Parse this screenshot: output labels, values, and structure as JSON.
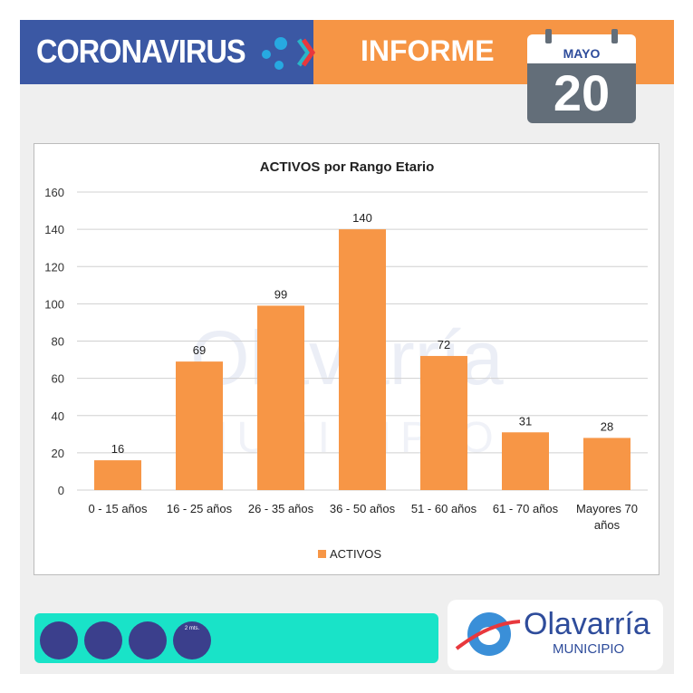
{
  "header": {
    "left_title": "CORONAVIRUS",
    "right_title": "INFORME",
    "calendar": {
      "month": "MAYO",
      "day": "20"
    }
  },
  "footer": {
    "logo_name": "Olavarría",
    "logo_subtitle": "MUNICIPIO",
    "icons": [
      "face-mask-icon",
      "hand-washing-icon",
      "sanitizer-spray-icon",
      "social-distance-icon"
    ],
    "distance_label": "2 mts."
  },
  "colors": {
    "bar": "#f79646",
    "header_blue": "#3b58a4",
    "header_orange": "#f69545",
    "footer_teal": "#19e3c8"
  },
  "chart_data": {
    "type": "bar",
    "title": "ACTIVOS por Rango Etario",
    "categories": [
      "0 - 15 años",
      "16 - 25 años",
      "26 - 35 años",
      "36 - 50 años",
      "51 - 60 años",
      "61 - 70 años",
      "Mayores 70 años"
    ],
    "series": [
      {
        "name": "ACTIVOS",
        "values": [
          16,
          69,
          99,
          140,
          72,
          31,
          28
        ]
      }
    ],
    "ylim": [
      0,
      160
    ],
    "yticks": [
      0,
      20,
      40,
      60,
      80,
      100,
      120,
      140,
      160
    ],
    "grid": true,
    "data_labels": true,
    "legend": "bottom",
    "watermark": "Olavarría MUNICIPIO"
  }
}
